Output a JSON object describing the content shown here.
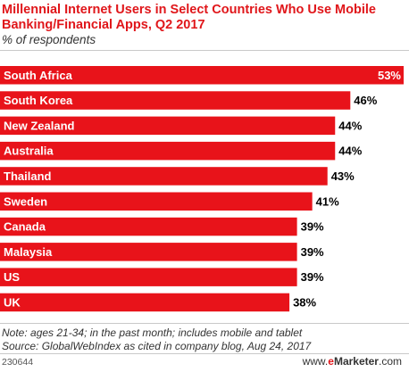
{
  "title": "Millennial Internet Users in Select Countries Who Use Mobile Banking/Financial Apps, Q2 2017",
  "subtitle": "% of respondents",
  "note": "Note: ages 21-34; in the past month; includes mobile and tablet",
  "source": "Source: GlobalWebIndex as cited in company blog, Aug 24, 2017",
  "chart_id": "230644",
  "brand": {
    "prefix": "www.",
    "e": "e",
    "name": "Marketer",
    "suffix": ".com"
  },
  "colors": {
    "bar": "#e8131a",
    "title": "#e0161a",
    "label": "#ffffff",
    "value": "#000000"
  },
  "chart_data": {
    "type": "bar",
    "orientation": "horizontal",
    "title": "Millennial Internet Users in Select Countries Who Use Mobile Banking/Financial Apps, Q2 2017",
    "subtitle": "% of respondents",
    "categories": [
      "South Africa",
      "South Korea",
      "New Zealand",
      "Australia",
      "Thailand",
      "Sweden",
      "Canada",
      "Malaysia",
      "US",
      "UK"
    ],
    "values": [
      53,
      46,
      44,
      44,
      43,
      41,
      39,
      39,
      39,
      38
    ],
    "value_labels": [
      "53%",
      "46%",
      "44%",
      "44%",
      "43%",
      "41%",
      "39%",
      "39%",
      "39%",
      "38%"
    ],
    "xlim": [
      0,
      53
    ],
    "grid": false,
    "legend": "none"
  }
}
